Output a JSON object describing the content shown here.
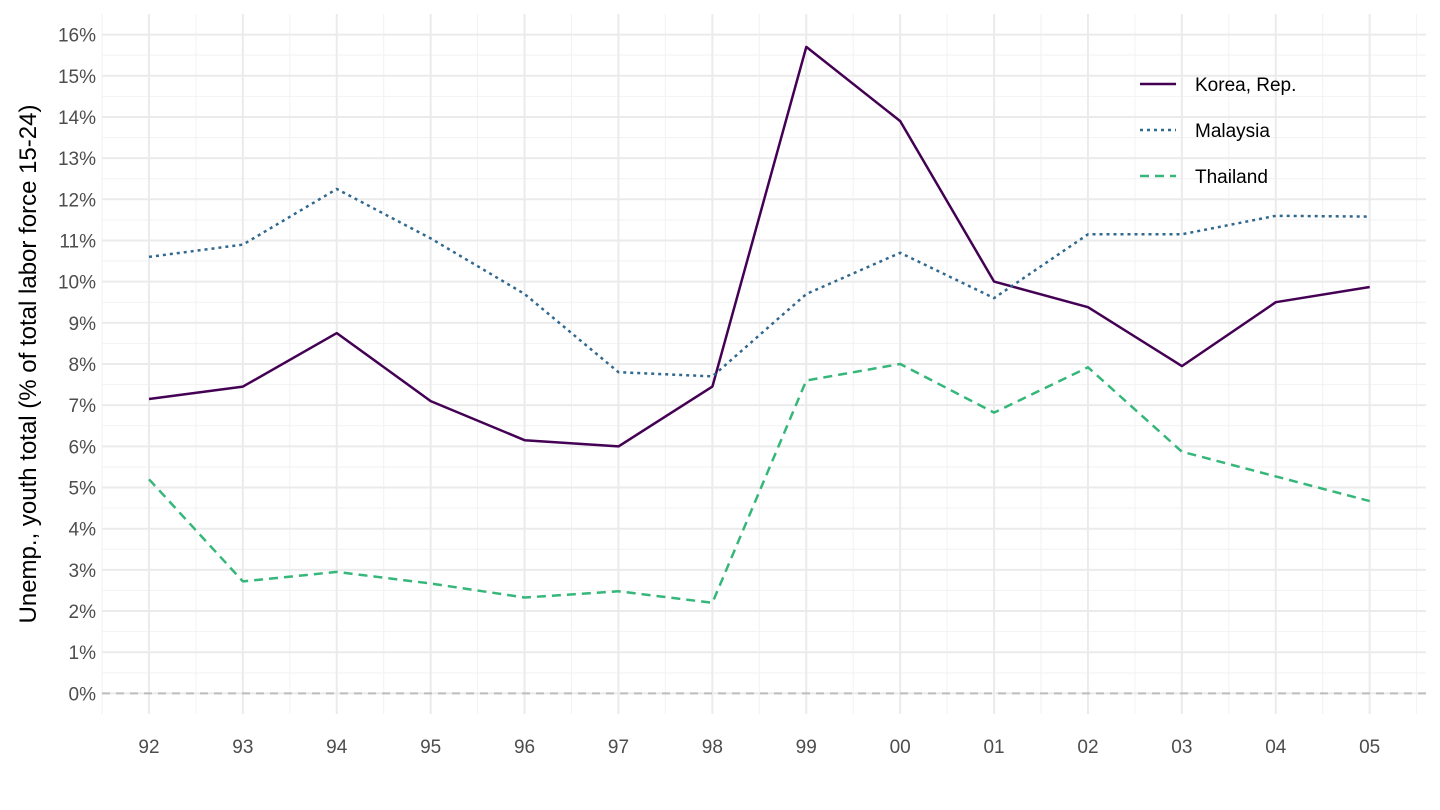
{
  "chart_data": {
    "type": "line",
    "title": "",
    "xlabel": "",
    "ylabel": "Unemp., youth total (% of total labor force 15-24)",
    "x_tick_labels": [
      "92",
      "93",
      "94",
      "95",
      "96",
      "97",
      "98",
      "99",
      "00",
      "01",
      "02",
      "03",
      "04",
      "05"
    ],
    "x_values": [
      1992,
      1993,
      1994,
      1995,
      1996,
      1997,
      1998,
      1999,
      2000,
      2001,
      2002,
      2003,
      2004,
      2005
    ],
    "xlim": [
      1991.5,
      2005.6
    ],
    "ylim": [
      -0.5,
      16.5
    ],
    "y_ticks": [
      0,
      1,
      2,
      3,
      4,
      5,
      6,
      7,
      8,
      9,
      10,
      11,
      12,
      13,
      14,
      15,
      16
    ],
    "y_tick_labels": [
      "0%",
      "1%",
      "2%",
      "3%",
      "4%",
      "5%",
      "6%",
      "7%",
      "8%",
      "9%",
      "10%",
      "11%",
      "12%",
      "13%",
      "14%",
      "15%",
      "16%"
    ],
    "reference_line_y": 0,
    "grid": true,
    "legend_position": "top-right",
    "series": [
      {
        "name": "Korea, Rep.",
        "color": "#440154",
        "dash": "solid",
        "values": [
          7.15,
          7.45,
          8.75,
          7.1,
          6.15,
          6.0,
          7.45,
          15.7,
          13.9,
          10.0,
          9.38,
          7.95,
          9.5,
          9.87
        ]
      },
      {
        "name": "Malaysia",
        "color": "#31688e",
        "dash": "dotted",
        "values": [
          10.6,
          10.9,
          12.25,
          11.05,
          9.7,
          7.8,
          7.7,
          9.7,
          10.7,
          9.6,
          11.15,
          11.15,
          11.6,
          11.58
        ]
      },
      {
        "name": "Thailand",
        "color": "#35b779",
        "dash": "dashed",
        "values": [
          5.2,
          2.72,
          2.95,
          2.67,
          2.33,
          2.48,
          2.2,
          7.6,
          8.0,
          6.82,
          7.92,
          5.87,
          5.27,
          4.67
        ]
      }
    ]
  }
}
